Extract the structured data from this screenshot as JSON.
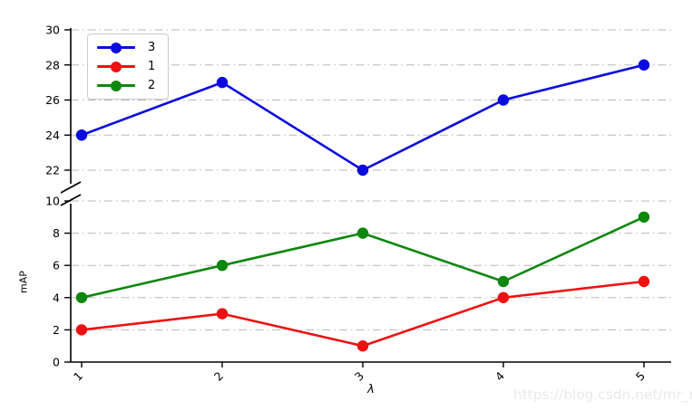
{
  "watermark": "https://blog.csdn.net/mr_mul",
  "chart_data": {
    "type": "line",
    "x": [
      1,
      2,
      3,
      4,
      5
    ],
    "x_tick_labels": [
      "1",
      "2",
      "3",
      "4",
      "5"
    ],
    "xlabel": "λ",
    "ylabel": "mAP",
    "grid": "dash-dot",
    "legend_position": "upper-left",
    "broken_y_axis": {
      "top_segment": {
        "range": [
          22,
          30
        ],
        "ticks": [
          22,
          24,
          26,
          28,
          30
        ],
        "tick_labels": [
          "22",
          "24",
          "26",
          "28",
          "30"
        ]
      },
      "bottom_segment": {
        "range": [
          0,
          10
        ],
        "ticks": [
          0,
          2,
          4,
          6,
          8,
          10
        ],
        "tick_labels": [
          "0",
          "2",
          "4",
          "6",
          "8",
          "10"
        ]
      }
    },
    "series": [
      {
        "name": "3",
        "color": "#0b0bde",
        "marker": "circle",
        "values": [
          24,
          27,
          22,
          26,
          28
        ]
      },
      {
        "name": "1",
        "color": "#ee1111",
        "marker": "circle",
        "values": [
          2,
          3,
          1,
          4,
          5
        ]
      },
      {
        "name": "2",
        "color": "#0e870e",
        "marker": "circle",
        "values": [
          4,
          6,
          8,
          5,
          9
        ]
      }
    ],
    "colors": {
      "grid": "#b8b8b8",
      "axis": "#000000",
      "legend_border": "#cbcbcb"
    }
  }
}
